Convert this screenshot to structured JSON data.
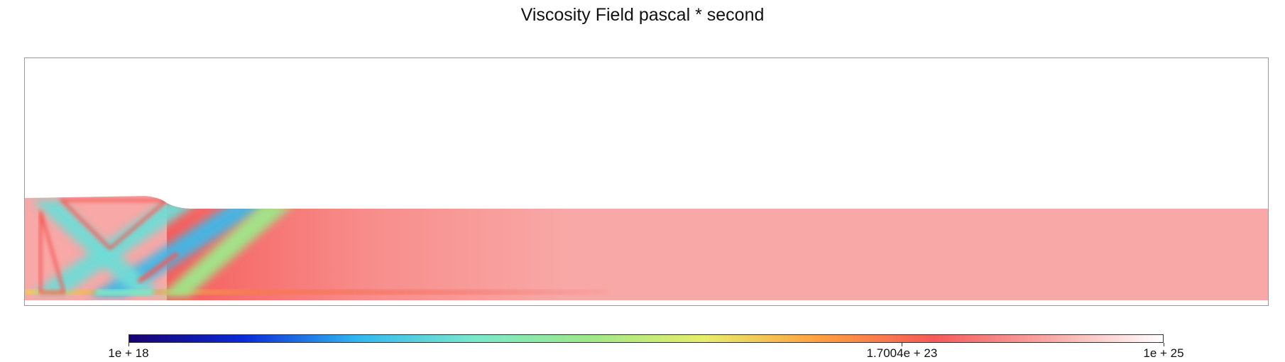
{
  "chart_data": {
    "type": "heatmap",
    "title": "Viscosity Field pascal * second",
    "colorbar": {
      "scale": "log",
      "min": 1e+18,
      "max": 1e+25,
      "colormap": [
        "#1a0070",
        "#0a2ad8",
        "#32b8f0",
        "#7ae8cc",
        "#9ee88a",
        "#e6ee6a",
        "#ffa040",
        "#f55a58",
        "#f8a8a6",
        "#ffffff"
      ],
      "ticks": [
        {
          "value": 1e+18,
          "label": "1e + 18"
        },
        {
          "value": 1.7004e+23,
          "label": "1.7004e + 23"
        },
        {
          "value": 1e+25,
          "label": "1e + 25"
        }
      ]
    },
    "field": {
      "background_color": "#f8a8a6",
      "weak_zone_colors": [
        "#6fdcd6",
        "#40b8e8",
        "#9ee88a",
        "#f55a58"
      ]
    },
    "legend": "bottom-colorbar",
    "grid": false
  }
}
